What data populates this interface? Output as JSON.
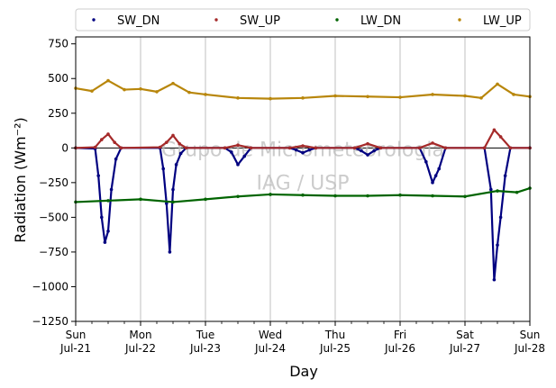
{
  "chart_data": {
    "type": "scatter",
    "xlabel": "Day",
    "ylabel": "Radiation (Wm⁻²)",
    "ylim": [
      -1250,
      800
    ],
    "yticks": [
      -1250,
      -1000,
      -750,
      -500,
      -250,
      0,
      250,
      500,
      750
    ],
    "xlim": [
      0,
      7
    ],
    "xticks": [
      {
        "value": 0,
        "line1": "Sun",
        "line2": "Jul-21"
      },
      {
        "value": 1,
        "line1": "Mon",
        "line2": "Jul-22"
      },
      {
        "value": 2,
        "line1": "Tue",
        "line2": "Jul-23"
      },
      {
        "value": 3,
        "line1": "Wed",
        "line2": "Jul-24"
      },
      {
        "value": 4,
        "line1": "Thu",
        "line2": "Jul-25"
      },
      {
        "value": 5,
        "line1": "Fri",
        "line2": "Jul-26"
      },
      {
        "value": 6,
        "line1": "Sat",
        "line2": "Jul-27"
      },
      {
        "value": 7,
        "line1": "Sun",
        "line2": "Jul-28"
      }
    ],
    "grid": "vertical",
    "legend_position": "top",
    "watermark": [
      "Grupo de Micrometeorologia",
      "IAG / USP"
    ],
    "series": [
      {
        "name": "SW_DN",
        "color": "#000080",
        "x": [
          0,
          0.3,
          0.35,
          0.4,
          0.45,
          0.5,
          0.55,
          0.62,
          0.7,
          1.3,
          1.35,
          1.4,
          1.45,
          1.5,
          1.55,
          1.62,
          1.7,
          2.3,
          2.4,
          2.5,
          2.6,
          2.7,
          3.3,
          3.4,
          3.5,
          3.6,
          3.7,
          4.3,
          4.4,
          4.5,
          4.6,
          4.7,
          5.3,
          5.4,
          5.5,
          5.55,
          5.6,
          5.7,
          6.3,
          6.4,
          6.45,
          6.5,
          6.55,
          6.62,
          6.7,
          7
        ],
        "y": [
          0,
          -5,
          -200,
          -500,
          -680,
          -600,
          -300,
          -80,
          0,
          0,
          -150,
          -400,
          -750,
          -300,
          -120,
          -40,
          0,
          0,
          -30,
          -120,
          -60,
          0,
          0,
          -15,
          -35,
          -15,
          0,
          0,
          -20,
          -50,
          -20,
          0,
          0,
          -100,
          -250,
          -200,
          -150,
          0,
          0,
          -300,
          -950,
          -700,
          -500,
          -200,
          0,
          0
        ]
      },
      {
        "name": "SW_UP",
        "color": "#a52a2a",
        "x": [
          0,
          0.3,
          0.4,
          0.5,
          0.6,
          0.7,
          1.3,
          1.4,
          1.5,
          1.6,
          1.7,
          2.3,
          2.5,
          2.7,
          3.3,
          3.5,
          3.7,
          4.3,
          4.5,
          4.7,
          5.3,
          5.5,
          5.7,
          6.3,
          6.45,
          6.55,
          6.7,
          7
        ],
        "y": [
          0,
          5,
          60,
          100,
          40,
          0,
          5,
          40,
          90,
          30,
          0,
          0,
          20,
          0,
          0,
          15,
          0,
          0,
          30,
          0,
          0,
          35,
          0,
          0,
          130,
          80,
          0,
          0
        ]
      },
      {
        "name": "LW_DN",
        "color": "#006400",
        "x": [
          0,
          0.5,
          1,
          1.5,
          2,
          2.5,
          3,
          3.5,
          4,
          4.5,
          5,
          5.5,
          6,
          6.5,
          6.8,
          7
        ],
        "y": [
          -390,
          -380,
          -370,
          -390,
          -370,
          -350,
          -335,
          -340,
          -345,
          -345,
          -340,
          -345,
          -350,
          -310,
          -320,
          -290
        ]
      },
      {
        "name": "LW_UP",
        "color": "#b8860b",
        "x": [
          0,
          0.25,
          0.5,
          0.75,
          1,
          1.25,
          1.5,
          1.75,
          2,
          2.5,
          3,
          3.5,
          4,
          4.5,
          5,
          5.5,
          6,
          6.25,
          6.5,
          6.75,
          7
        ],
        "y": [
          430,
          410,
          485,
          420,
          425,
          405,
          465,
          400,
          385,
          360,
          355,
          360,
          375,
          370,
          365,
          385,
          375,
          360,
          460,
          385,
          370
        ]
      }
    ]
  }
}
